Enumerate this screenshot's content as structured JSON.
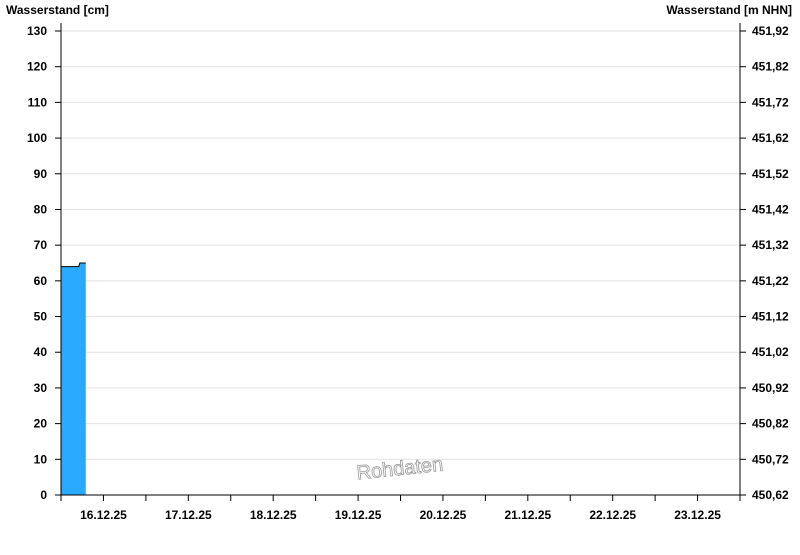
{
  "chart_data": {
    "type": "area",
    "ylabel_left": "Wasserstand [cm]",
    "ylabel_right": "Wasserstand [m NHN]",
    "ylim": [
      0,
      130
    ],
    "yticks": [
      0,
      10,
      20,
      30,
      40,
      50,
      60,
      70,
      80,
      90,
      100,
      110,
      120,
      130
    ],
    "right_ticks": [
      "450,62",
      "450,72",
      "450,82",
      "450,92",
      "451,02",
      "451,12",
      "451,22",
      "451,32",
      "451,42",
      "451,52",
      "451,62",
      "451,72",
      "451,82",
      "451,92"
    ],
    "xlim": [
      "2025-12-16T00:00",
      "2025-12-24T00:00"
    ],
    "xtick_labels": [
      "16.12.25",
      "17.12.25",
      "18.12.25",
      "19.12.25",
      "20.12.25",
      "21.12.25",
      "22.12.25",
      "23.12.25"
    ],
    "grid": true,
    "fill_color": "#29a9ff",
    "watermark": "Rohdaten",
    "series": [
      {
        "points": [
          [
            "2025-12-16T00:00",
            64
          ],
          [
            "2025-12-16T05:00",
            64
          ],
          [
            "2025-12-16T05:20",
            65
          ],
          [
            "2025-12-16T07:00",
            65
          ]
        ]
      }
    ]
  }
}
